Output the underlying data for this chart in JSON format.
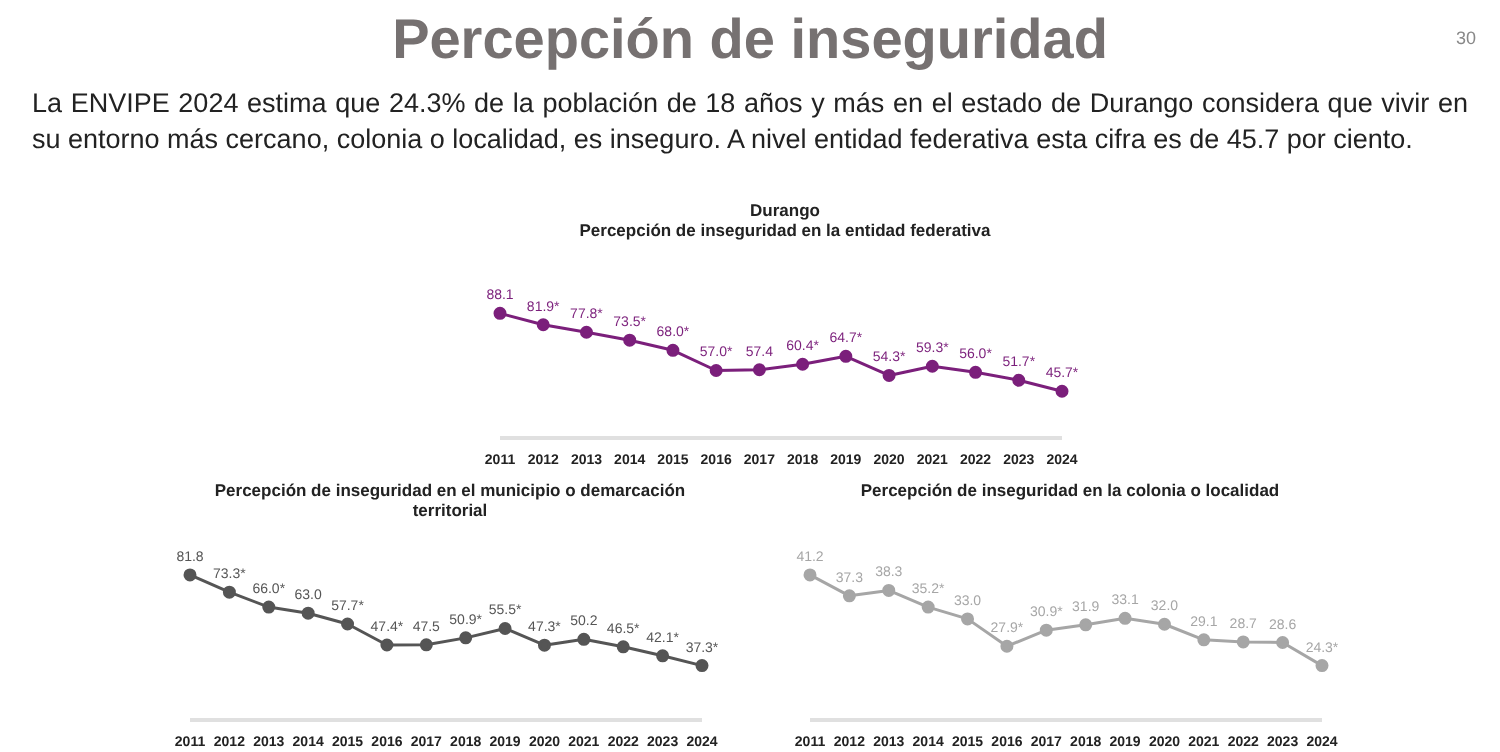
{
  "chart_data": [
    {
      "type": "other",
      "title": "Percepción de inseguridad",
      "annotations": [
        "La ENVIPE 2024 estima que 24.3% de la población de 18 años y más en el estado de Durango considera que vivir en su entorno más cercano, colonia o localidad, es inseguro. A nivel entidad federativa esta cifra es de 45.7 por ciento.",
        "30"
      ]
    },
    {
      "type": "line",
      "title": "Durango",
      "subtitle": "Percepción de inseguridad en la entidad federativa",
      "categories": [
        "2011",
        "2012",
        "2013",
        "2014",
        "2015",
        "2016",
        "2017",
        "2018",
        "2019",
        "2020",
        "2021",
        "2022",
        "2023",
        "2024"
      ],
      "marker": "circle",
      "line_style": "solid",
      "series": [
        {
          "color": "#7b1f7b",
          "values": [
            88.1,
            81.9,
            77.8,
            73.5,
            68.0,
            57.0,
            57.4,
            60.4,
            64.7,
            54.3,
            59.3,
            56.0,
            51.7,
            45.7
          ],
          "value_labels": [
            "88.1",
            "81.9*",
            "77.8*",
            "73.5*",
            "68.0*",
            "57.0*",
            "57.4",
            "60.4*",
            "64.7*",
            "54.3*",
            "59.3*",
            "56.0*",
            "51.7*",
            "45.7*"
          ]
        }
      ]
    },
    {
      "type": "line",
      "title": "Percepción de inseguridad en el municipio o demarcación territorial",
      "categories": [
        "2011",
        "2012",
        "2013",
        "2014",
        "2015",
        "2016",
        "2017",
        "2018",
        "2019",
        "2020",
        "2021",
        "2022",
        "2023",
        "2024"
      ],
      "marker": "circle",
      "line_style": "solid",
      "series": [
        {
          "color": "#555555",
          "values": [
            81.8,
            73.3,
            66.0,
            63.0,
            57.7,
            47.4,
            47.5,
            50.9,
            55.5,
            47.3,
            50.2,
            46.5,
            42.1,
            37.3
          ],
          "value_labels": [
            "81.8",
            "73.3*",
            "66.0*",
            "63.0",
            "57.7*",
            "47.4*",
            "47.5",
            "50.9*",
            "55.5*",
            "47.3*",
            "50.2",
            "46.5*",
            "42.1*",
            "37.3*"
          ]
        }
      ]
    },
    {
      "type": "line",
      "title": "Percepción de inseguridad en la colonia o localidad",
      "categories": [
        "2011",
        "2012",
        "2013",
        "2014",
        "2015",
        "2016",
        "2017",
        "2018",
        "2019",
        "2020",
        "2021",
        "2022",
        "2023",
        "2024"
      ],
      "marker": "circle",
      "line_style": "solid",
      "series": [
        {
          "color": "#a6a6a6",
          "values": [
            41.2,
            37.3,
            38.3,
            35.2,
            33.0,
            27.9,
            30.9,
            31.9,
            33.1,
            32.0,
            29.1,
            28.7,
            28.6,
            24.3
          ],
          "value_labels": [
            "41.2",
            "37.3",
            "38.3",
            "35.2*",
            "33.0",
            "27.9*",
            "30.9*",
            "31.9",
            "33.1",
            "32.0",
            "29.1",
            "28.7",
            "28.6",
            "24.3*"
          ]
        }
      ]
    }
  ]
}
